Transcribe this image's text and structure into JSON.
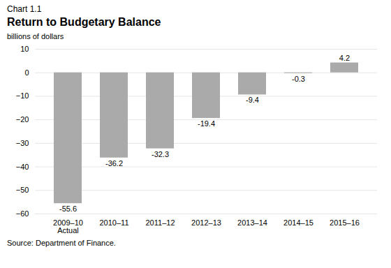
{
  "chart_data": {
    "type": "bar",
    "title": "Return to Budgetary Balance",
    "subtitle": "Chart 1.1",
    "ylabel": "billions of dollars",
    "annotations": [
      "Source: Department of Finance."
    ],
    "categories": [
      "2009–10\nActual",
      "2010–11",
      "2011–12",
      "2012–13",
      "2013–14",
      "2014–15",
      "2015–16"
    ],
    "values": [
      -55.6,
      -36.2,
      -32.3,
      -19.4,
      -9.4,
      -0.3,
      4.2
    ],
    "color": "#aaaaaa",
    "ylim": [
      -60,
      10
    ],
    "yticks": [
      -60,
      -50,
      -40,
      -30,
      -20,
      -10,
      0,
      10
    ],
    "grid": true,
    "data_labels": true
  }
}
